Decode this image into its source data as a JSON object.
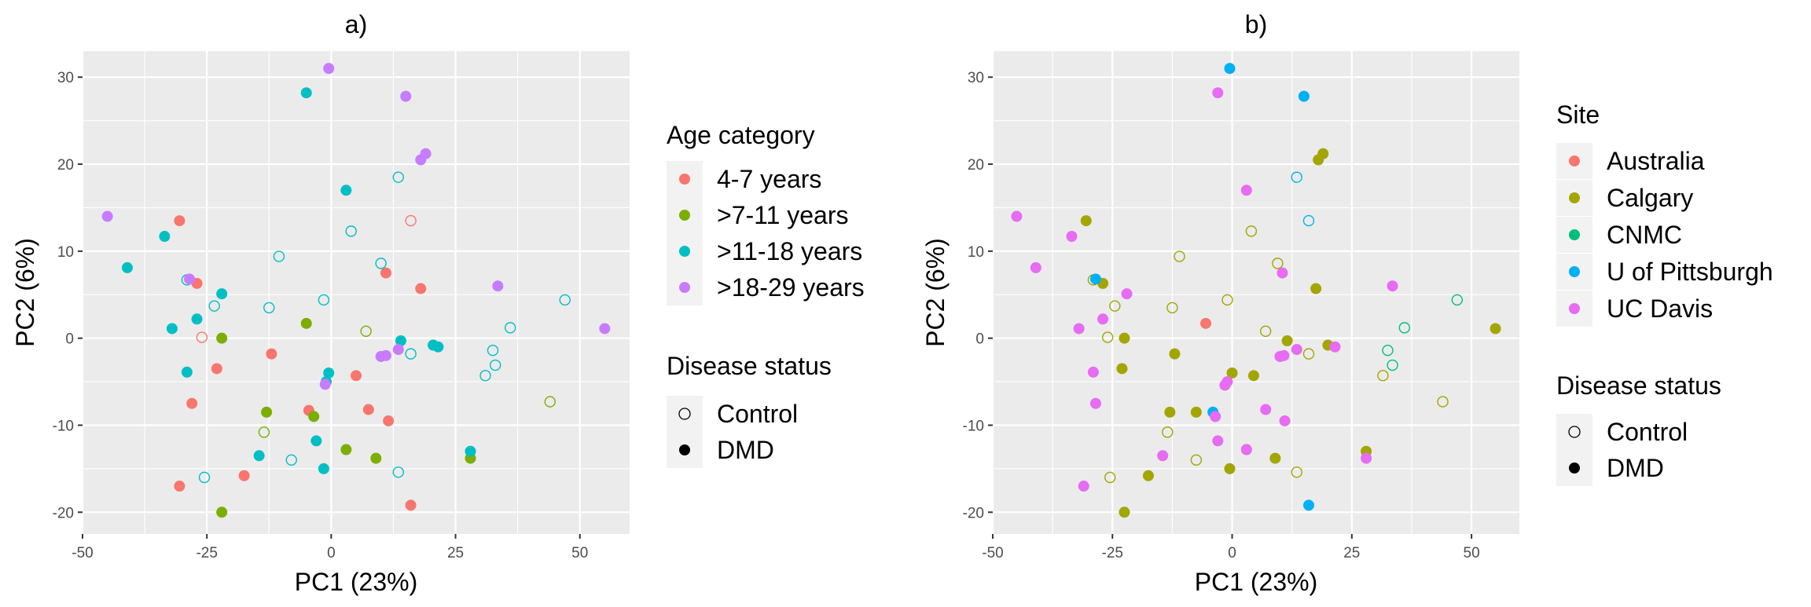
{
  "chart_data": [
    {
      "type": "scatter",
      "title": "a)",
      "xlabel": "PC1 (23%)",
      "ylabel": "PC2 (6%)",
      "xlim": [
        -50,
        60
      ],
      "ylim": [
        -22.5,
        33
      ],
      "x_ticks": [
        -50,
        -25,
        0,
        25,
        50
      ],
      "y_ticks": [
        -20,
        -10,
        0,
        10,
        20,
        30
      ],
      "grid": true,
      "legend_placement": "right",
      "legend_color_title": "Age category",
      "legend_shape_title": "Disease status",
      "series": [
        {
          "name": "4-7 years",
          "color": "#F8766D",
          "points": [
            {
              "x": -30.5,
              "y": 13.5,
              "status": "DMD"
            },
            {
              "x": -27,
              "y": 6.3,
              "status": "DMD"
            },
            {
              "x": -28,
              "y": -7.5,
              "status": "DMD"
            },
            {
              "x": -30.5,
              "y": -17,
              "status": "DMD"
            },
            {
              "x": -23,
              "y": -3.5,
              "status": "DMD"
            },
            {
              "x": -12,
              "y": -1.8,
              "status": "DMD"
            },
            {
              "x": -17.5,
              "y": -15.8,
              "status": "DMD"
            },
            {
              "x": -4.5,
              "y": -8.3,
              "status": "DMD"
            },
            {
              "x": 5,
              "y": -4.3,
              "status": "DMD"
            },
            {
              "x": 7.5,
              "y": -8.2,
              "status": "DMD"
            },
            {
              "x": 11.5,
              "y": -9.5,
              "status": "DMD"
            },
            {
              "x": 11,
              "y": 7.5,
              "status": "DMD"
            },
            {
              "x": 18,
              "y": 5.7,
              "status": "DMD"
            },
            {
              "x": 16,
              "y": -19.2,
              "status": "DMD"
            },
            {
              "x": -26,
              "y": 0.1,
              "status": "Control"
            },
            {
              "x": 16,
              "y": 13.5,
              "status": "Control"
            }
          ]
        },
        {
          "name": ">7-11 years",
          "color": "#7CAE00",
          "points": [
            {
              "x": -22,
              "y": 0,
              "status": "DMD"
            },
            {
              "x": -5,
              "y": 1.7,
              "status": "DMD"
            },
            {
              "x": -13,
              "y": -8.5,
              "status": "DMD"
            },
            {
              "x": -3.5,
              "y": -9,
              "status": "DMD"
            },
            {
              "x": 3,
              "y": -12.8,
              "status": "DMD"
            },
            {
              "x": 9,
              "y": -13.8,
              "status": "DMD"
            },
            {
              "x": -22,
              "y": -20,
              "status": "DMD"
            },
            {
              "x": 28,
              "y": -13.8,
              "status": "DMD"
            },
            {
              "x": 7,
              "y": 0.8,
              "status": "Control"
            },
            {
              "x": -13.5,
              "y": -10.8,
              "status": "Control"
            },
            {
              "x": 44,
              "y": -7.3,
              "status": "Control"
            }
          ]
        },
        {
          "name": ">11-18 years",
          "color": "#00BFC4",
          "points": [
            {
              "x": -5,
              "y": 28.2,
              "status": "DMD"
            },
            {
              "x": 3,
              "y": 17,
              "status": "DMD"
            },
            {
              "x": -33.5,
              "y": 11.7,
              "status": "DMD"
            },
            {
              "x": -41,
              "y": 8.1,
              "status": "DMD"
            },
            {
              "x": -22,
              "y": 5.1,
              "status": "DMD"
            },
            {
              "x": -27,
              "y": 2.2,
              "status": "DMD"
            },
            {
              "x": -32,
              "y": 1.1,
              "status": "DMD"
            },
            {
              "x": -29,
              "y": -3.9,
              "status": "DMD"
            },
            {
              "x": -0.5,
              "y": -4,
              "status": "DMD"
            },
            {
              "x": -1,
              "y": -5,
              "status": "DMD"
            },
            {
              "x": -3,
              "y": -11.8,
              "status": "DMD"
            },
            {
              "x": -14.5,
              "y": -13.5,
              "status": "DMD"
            },
            {
              "x": -1.5,
              "y": -15,
              "status": "DMD"
            },
            {
              "x": 14,
              "y": -0.3,
              "status": "DMD"
            },
            {
              "x": 20.5,
              "y": -0.8,
              "status": "DMD"
            },
            {
              "x": 21.5,
              "y": -1,
              "status": "DMD"
            },
            {
              "x": 28,
              "y": -13,
              "status": "DMD"
            },
            {
              "x": -23.5,
              "y": 3.7,
              "status": "Control"
            },
            {
              "x": -12.5,
              "y": 3.5,
              "status": "Control"
            },
            {
              "x": -10.5,
              "y": 9.4,
              "status": "Control"
            },
            {
              "x": 4,
              "y": 12.3,
              "status": "Control"
            },
            {
              "x": -1.5,
              "y": 4.4,
              "status": "Control"
            },
            {
              "x": 10,
              "y": 8.6,
              "status": "Control"
            },
            {
              "x": 13.5,
              "y": 18.5,
              "status": "Control"
            },
            {
              "x": -29,
              "y": 6.7,
              "status": "Control"
            },
            {
              "x": 16,
              "y": -1.8,
              "status": "Control"
            },
            {
              "x": 31,
              "y": -4.3,
              "status": "Control"
            },
            {
              "x": 32.5,
              "y": -1.4,
              "status": "Control"
            },
            {
              "x": 33,
              "y": -3.1,
              "status": "Control"
            },
            {
              "x": 36,
              "y": 1.2,
              "status": "Control"
            },
            {
              "x": 47,
              "y": 4.4,
              "status": "Control"
            },
            {
              "x": -25.5,
              "y": -16,
              "status": "Control"
            },
            {
              "x": -8,
              "y": -14,
              "status": "Control"
            },
            {
              "x": 13.5,
              "y": -15.4,
              "status": "Control"
            }
          ]
        },
        {
          "name": ">18-29 years",
          "color": "#C77CFF",
          "points": [
            {
              "x": -0.5,
              "y": 31,
              "status": "DMD"
            },
            {
              "x": 15,
              "y": 27.8,
              "status": "DMD"
            },
            {
              "x": 19,
              "y": 21.2,
              "status": "DMD"
            },
            {
              "x": 18,
              "y": 20.5,
              "status": "DMD"
            },
            {
              "x": -45,
              "y": 14,
              "status": "DMD"
            },
            {
              "x": -28.5,
              "y": 6.8,
              "status": "DMD"
            },
            {
              "x": 33.5,
              "y": 6,
              "status": "DMD"
            },
            {
              "x": 13.5,
              "y": -1.3,
              "status": "DMD"
            },
            {
              "x": 10,
              "y": -2.1,
              "status": "DMD"
            },
            {
              "x": 11,
              "y": -2,
              "status": "DMD"
            },
            {
              "x": -1.2,
              "y": -5.3,
              "status": "DMD"
            },
            {
              "x": 55,
              "y": 1.1,
              "status": "DMD"
            }
          ]
        }
      ]
    },
    {
      "type": "scatter",
      "title": "b)",
      "xlabel": "PC1 (23%)",
      "ylabel": "PC2 (6%)",
      "xlim": [
        -50,
        60
      ],
      "ylim": [
        -22.5,
        33
      ],
      "x_ticks": [
        -50,
        -25,
        0,
        25,
        50
      ],
      "y_ticks": [
        -20,
        -10,
        0,
        10,
        20,
        30
      ],
      "grid": true,
      "legend_placement": "right",
      "legend_color_title": "Site",
      "legend_shape_title": "Disease status",
      "series": [
        {
          "name": "Australia",
          "color": "#F8766D",
          "points": [
            {
              "x": -5.5,
              "y": 1.7,
              "status": "DMD"
            }
          ]
        },
        {
          "name": "Calgary",
          "color": "#A3A500",
          "points": [
            {
              "x": -30.5,
              "y": 13.5,
              "status": "DMD"
            },
            {
              "x": -27,
              "y": 6.3,
              "status": "DMD"
            },
            {
              "x": -22.5,
              "y": 0,
              "status": "DMD"
            },
            {
              "x": -23,
              "y": -3.5,
              "status": "DMD"
            },
            {
              "x": -12,
              "y": -1.8,
              "status": "DMD"
            },
            {
              "x": 4.5,
              "y": -4.3,
              "status": "DMD"
            },
            {
              "x": -13,
              "y": -8.5,
              "status": "DMD"
            },
            {
              "x": -7.5,
              "y": -8.5,
              "status": "DMD"
            },
            {
              "x": -17.5,
              "y": -15.8,
              "status": "DMD"
            },
            {
              "x": -0.5,
              "y": -15,
              "status": "DMD"
            },
            {
              "x": 9,
              "y": -13.8,
              "status": "DMD"
            },
            {
              "x": 11.5,
              "y": -0.3,
              "status": "DMD"
            },
            {
              "x": 17.5,
              "y": 5.7,
              "status": "DMD"
            },
            {
              "x": 20,
              "y": -0.8,
              "status": "DMD"
            },
            {
              "x": 28,
              "y": -13,
              "status": "DMD"
            },
            {
              "x": 18,
              "y": 20.5,
              "status": "DMD"
            },
            {
              "x": 19,
              "y": 21.2,
              "status": "DMD"
            },
            {
              "x": 55,
              "y": 1.1,
              "status": "DMD"
            },
            {
              "x": -22.5,
              "y": -20,
              "status": "DMD"
            },
            {
              "x": 0,
              "y": -4,
              "status": "DMD"
            },
            {
              "x": 3,
              "y": -12.8,
              "status": "DMD"
            },
            {
              "x": -29,
              "y": 6.7,
              "status": "Control"
            },
            {
              "x": -24.5,
              "y": 3.7,
              "status": "Control"
            },
            {
              "x": -26,
              "y": 0.1,
              "status": "Control"
            },
            {
              "x": -12.5,
              "y": 3.5,
              "status": "Control"
            },
            {
              "x": -11,
              "y": 9.4,
              "status": "Control"
            },
            {
              "x": 4,
              "y": 12.3,
              "status": "Control"
            },
            {
              "x": -1,
              "y": 4.4,
              "status": "Control"
            },
            {
              "x": 9.5,
              "y": 8.6,
              "status": "Control"
            },
            {
              "x": 7,
              "y": 0.8,
              "status": "Control"
            },
            {
              "x": 16,
              "y": -1.8,
              "status": "Control"
            },
            {
              "x": 31.5,
              "y": -4.3,
              "status": "Control"
            },
            {
              "x": 44,
              "y": -7.3,
              "status": "Control"
            },
            {
              "x": -13.5,
              "y": -10.8,
              "status": "Control"
            },
            {
              "x": -25.5,
              "y": -16,
              "status": "Control"
            },
            {
              "x": -7.5,
              "y": -14,
              "status": "Control"
            },
            {
              "x": 13.5,
              "y": -15.4,
              "status": "Control"
            }
          ]
        },
        {
          "name": "CNMC",
          "color": "#00BF7D",
          "points": [
            {
              "x": 32.5,
              "y": -1.4,
              "status": "Control"
            },
            {
              "x": 33.5,
              "y": -3.1,
              "status": "Control"
            },
            {
              "x": 36,
              "y": 1.2,
              "status": "Control"
            },
            {
              "x": 47,
              "y": 4.4,
              "status": "Control"
            }
          ]
        },
        {
          "name": "U of Pittsburgh",
          "color": "#00B0F6",
          "points": [
            {
              "x": -0.5,
              "y": 31,
              "status": "DMD"
            },
            {
              "x": 15,
              "y": 27.8,
              "status": "DMD"
            },
            {
              "x": -28.5,
              "y": 6.8,
              "status": "DMD"
            },
            {
              "x": -4,
              "y": -8.5,
              "status": "DMD"
            },
            {
              "x": 16,
              "y": -19.2,
              "status": "DMD"
            },
            {
              "x": 13.5,
              "y": 18.5,
              "status": "Control"
            },
            {
              "x": 16,
              "y": 13.5,
              "status": "Control"
            }
          ]
        },
        {
          "name": "UC Davis",
          "color": "#E76BF3",
          "points": [
            {
              "x": -3,
              "y": 28.2,
              "status": "DMD"
            },
            {
              "x": 3,
              "y": 17,
              "status": "DMD"
            },
            {
              "x": -45,
              "y": 14,
              "status": "DMD"
            },
            {
              "x": -33.5,
              "y": 11.7,
              "status": "DMD"
            },
            {
              "x": -41,
              "y": 8.1,
              "status": "DMD"
            },
            {
              "x": -22,
              "y": 5.1,
              "status": "DMD"
            },
            {
              "x": -27,
              "y": 2.2,
              "status": "DMD"
            },
            {
              "x": -32,
              "y": 1.1,
              "status": "DMD"
            },
            {
              "x": -29,
              "y": -3.9,
              "status": "DMD"
            },
            {
              "x": -28.5,
              "y": -7.5,
              "status": "DMD"
            },
            {
              "x": -1,
              "y": -5,
              "status": "DMD"
            },
            {
              "x": -1.5,
              "y": -5.4,
              "status": "DMD"
            },
            {
              "x": -3.5,
              "y": -9,
              "status": "DMD"
            },
            {
              "x": -3,
              "y": -11.8,
              "status": "DMD"
            },
            {
              "x": -14.5,
              "y": -13.5,
              "status": "DMD"
            },
            {
              "x": -31,
              "y": -17,
              "status": "DMD"
            },
            {
              "x": 3,
              "y": -12.8,
              "status": "DMD"
            },
            {
              "x": 7,
              "y": -8.2,
              "status": "DMD"
            },
            {
              "x": 11,
              "y": -9.5,
              "status": "DMD"
            },
            {
              "x": 10.5,
              "y": 7.5,
              "status": "DMD"
            },
            {
              "x": 10,
              "y": -2.1,
              "status": "DMD"
            },
            {
              "x": 10.8,
              "y": -2,
              "status": "DMD"
            },
            {
              "x": 13.5,
              "y": -1.3,
              "status": "DMD"
            },
            {
              "x": 21.5,
              "y": -1,
              "status": "DMD"
            },
            {
              "x": 28,
              "y": -13.8,
              "status": "DMD"
            },
            {
              "x": 33.5,
              "y": 6,
              "status": "DMD"
            }
          ]
        }
      ]
    }
  ],
  "legend_labels": {
    "control": "Control",
    "dmd": "DMD"
  }
}
